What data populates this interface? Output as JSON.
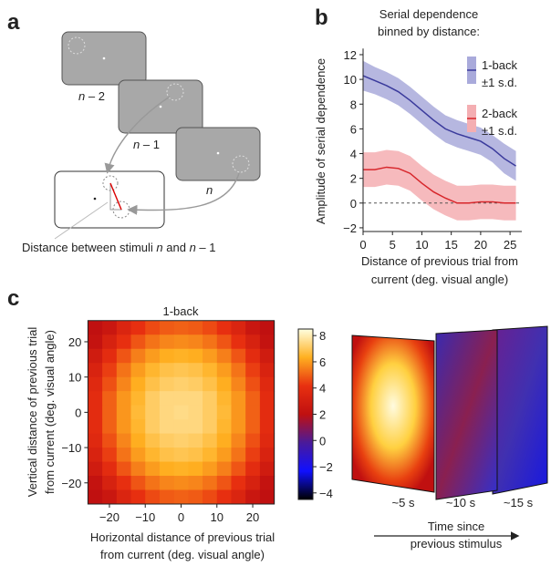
{
  "diagram": {
    "panel": "a",
    "frames": [
      {
        "var": "n",
        "offset": " – 2"
      },
      {
        "var": "n",
        "offset": " – 1"
      },
      {
        "var": "n",
        "offset": ""
      }
    ],
    "caption": [
      "Distance between stimuli ",
      "n",
      " and ",
      "n",
      " – 1"
    ]
  },
  "chart_data": [
    {
      "type": "line",
      "panel": "b",
      "title": [
        "Serial dependence",
        "binned by distance:"
      ],
      "xlabel": [
        "Distance of previous trial from",
        "current (deg. visual angle)"
      ],
      "ylabel": "Amplitude of serial dependence",
      "x": [
        0,
        2,
        4,
        6,
        8,
        10,
        12,
        14,
        16,
        18,
        20,
        22,
        24,
        26
      ],
      "series": [
        {
          "name": "1-back",
          "band_label": "±1 s.d.",
          "color": "#3a3a9c",
          "band_color": "#a9aadb",
          "values": [
            10.3,
            9.9,
            9.5,
            9.0,
            8.3,
            7.5,
            6.7,
            6.0,
            5.6,
            5.3,
            5.0,
            4.4,
            3.6,
            3.0
          ],
          "sd": [
            1.2,
            1.1,
            1.1,
            1.1,
            1.1,
            1.1,
            1.1,
            1.1,
            1.1,
            1.1,
            1.1,
            1.1,
            1.2,
            1.2
          ]
        },
        {
          "name": "2-back",
          "band_label": "±1 s.d.",
          "color": "#d7262b",
          "band_color": "#f4aeb2",
          "values": [
            2.7,
            2.7,
            2.9,
            2.8,
            2.4,
            1.6,
            0.9,
            0.4,
            0.0,
            0.0,
            0.1,
            0.1,
            0.0,
            0.0
          ],
          "sd": [
            1.4,
            1.4,
            1.4,
            1.4,
            1.4,
            1.4,
            1.4,
            1.4,
            1.4,
            1.4,
            1.4,
            1.4,
            1.4,
            1.4
          ]
        }
      ],
      "xlim": [
        0,
        27
      ],
      "xticks": [
        0,
        5,
        10,
        15,
        20,
        25
      ],
      "ylim": [
        -2.3,
        12.5
      ],
      "yticks": [
        {
          "value": -2,
          "label": "−2"
        },
        0,
        2,
        4,
        6,
        8,
        10,
        12
      ],
      "reference_line": 0
    },
    {
      "type": "heatmap",
      "panel": "c",
      "title": "1-back",
      "xlabel": [
        "Horizontal distance of previous trial",
        "from current (deg. visual angle)"
      ],
      "ylabel": [
        "Vertical distance of previous trial",
        "from current (deg. visual angle)"
      ],
      "x": [
        -24,
        -20,
        -16,
        -12,
        -8,
        -4,
        0,
        4,
        8,
        12,
        16,
        20,
        24
      ],
      "y": [
        24,
        20,
        16,
        12,
        8,
        4,
        0,
        -4,
        -8,
        -12,
        -16,
        -20,
        -24
      ],
      "z": [
        [
          2.0,
          2.5,
          3.4,
          4.1,
          4.6,
          4.9,
          5.0,
          4.9,
          4.6,
          4.1,
          3.4,
          2.5,
          2.0
        ],
        [
          2.2,
          3.2,
          4.1,
          4.8,
          5.3,
          5.6,
          5.7,
          5.6,
          5.3,
          4.8,
          4.1,
          3.2,
          2.2
        ],
        [
          2.8,
          3.9,
          4.8,
          5.5,
          6.0,
          6.3,
          6.4,
          6.3,
          6.0,
          5.5,
          4.8,
          3.9,
          2.8
        ],
        [
          3.3,
          4.4,
          5.3,
          6.0,
          6.5,
          6.8,
          6.9,
          6.8,
          6.5,
          6.0,
          5.3,
          4.4,
          3.3
        ],
        [
          3.7,
          4.7,
          5.6,
          6.3,
          6.8,
          7.1,
          7.2,
          7.1,
          6.8,
          6.3,
          5.6,
          4.7,
          3.7
        ],
        [
          3.9,
          5.0,
          5.9,
          6.5,
          7.1,
          7.4,
          7.4,
          7.4,
          7.1,
          6.5,
          5.9,
          5.0,
          3.9
        ],
        [
          3.9,
          5.0,
          5.9,
          6.6,
          7.1,
          7.4,
          7.5,
          7.4,
          7.1,
          6.6,
          5.9,
          5.0,
          3.9
        ],
        [
          3.9,
          5.0,
          5.9,
          6.5,
          7.1,
          7.4,
          7.4,
          7.4,
          7.1,
          6.5,
          5.9,
          5.0,
          3.9
        ],
        [
          3.7,
          4.7,
          5.6,
          6.3,
          6.8,
          7.1,
          7.2,
          7.1,
          6.8,
          6.3,
          5.6,
          4.7,
          3.7
        ],
        [
          3.3,
          4.4,
          5.3,
          6.0,
          6.5,
          6.8,
          6.9,
          6.8,
          6.5,
          6.0,
          5.3,
          4.4,
          3.3
        ],
        [
          2.8,
          3.9,
          4.8,
          5.5,
          6.0,
          6.3,
          6.4,
          6.3,
          6.0,
          5.5,
          4.8,
          3.9,
          2.8
        ],
        [
          2.2,
          3.2,
          4.1,
          4.8,
          5.3,
          5.6,
          5.7,
          5.6,
          5.3,
          4.8,
          4.1,
          3.2,
          2.2
        ],
        [
          2.0,
          2.5,
          3.4,
          4.1,
          4.6,
          4.9,
          5.0,
          4.9,
          4.6,
          4.1,
          3.4,
          2.5,
          2.0
        ]
      ],
      "xlim": [
        -26,
        26
      ],
      "ylim": [
        -26,
        26
      ],
      "xticks": [
        {
          "value": -20,
          "label": "−20"
        },
        {
          "value": -10,
          "label": "−10"
        },
        0,
        10,
        20
      ],
      "yticks": [
        {
          "value": -20,
          "label": "−20"
        },
        {
          "value": -10,
          "label": "−10"
        },
        0,
        10,
        20
      ],
      "clim": [
        -4.5,
        8.5
      ],
      "cticks": [
        {
          "value": -4,
          "label": "−4"
        },
        {
          "value": -2,
          "label": "−2"
        },
        0,
        2,
        4,
        6,
        8
      ],
      "colormap": [
        "#000000",
        "#1010ff",
        "#4a1a9a",
        "#c01010",
        "#e83010",
        "#ffb020",
        "#ffffe0"
      ]
    }
  ],
  "time_panel": {
    "labels": [
      "~5 s",
      "~10 s",
      "~15 s"
    ],
    "axis_label": [
      "Time since",
      "previous stimulus"
    ]
  }
}
